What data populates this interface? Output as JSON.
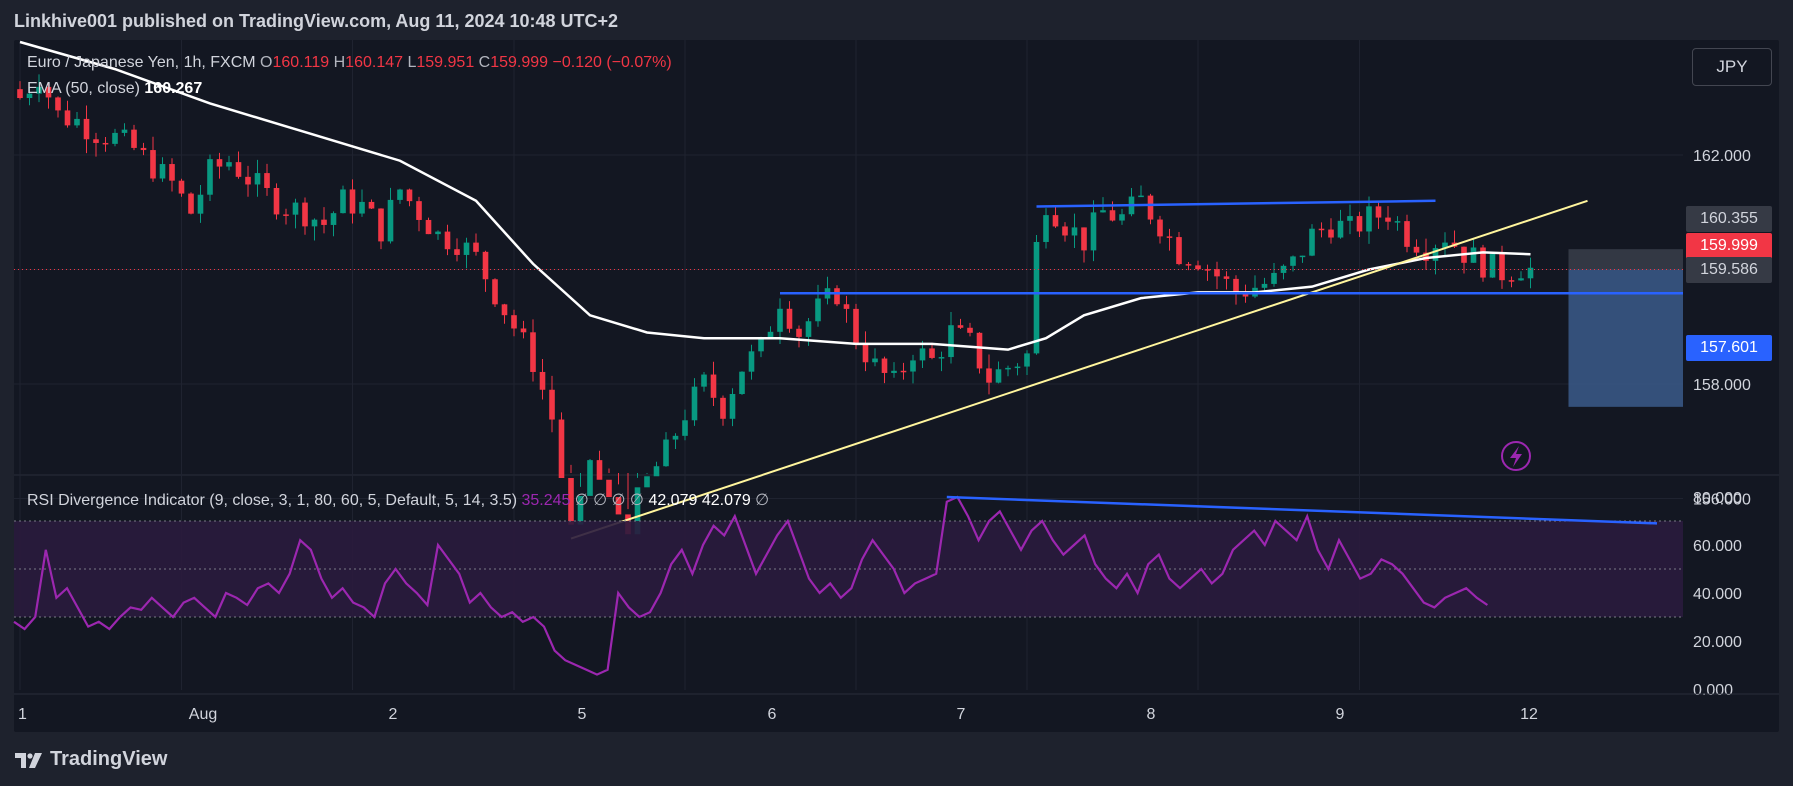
{
  "publisher": "Linkhive001 published on TradingView.com, Aug 11, 2024 10:48 UTC+2",
  "brand": "TradingView",
  "currency_button": "JPY",
  "legend": {
    "symbol": "Euro / Japanese Yen, 1h, FXCM",
    "o_label": "O",
    "o": "160.119",
    "h_label": "H",
    "h": "160.147",
    "l_label": "L",
    "l": "159.951",
    "c_label": "C",
    "c": "159.999",
    "change": "−0.120 (−0.07%)",
    "ema_label": "EMA (50, close)",
    "ema_value": "160.267",
    "rsi_label": "RSI Divergence Indicator (9, close, 3, 1, 80, 60, 5, Default, 5, 14, 3.5)",
    "rsi_value": "35.245",
    "rsi_null": "∅ ∅ ∅ ∅",
    "rsi_v1": "42.079",
    "rsi_v2": "42.079",
    "rsi_null2": "∅"
  },
  "price_tags": [
    {
      "label": "160.355",
      "bg": "#363a45",
      "fg": "#d1d4dc"
    },
    {
      "label": "159.999",
      "bg": "#f23645",
      "fg": "#ffffff"
    },
    {
      "label": "159.586",
      "bg": "#363a45",
      "fg": "#d1d4dc"
    },
    {
      "label": "157.601",
      "bg": "#2962ff",
      "fg": "#ffffff"
    }
  ],
  "colors": {
    "up": "#089981",
    "down": "#f23645",
    "ema": "#ffffff",
    "trendline": "#fff59d",
    "level": "#2962ff",
    "rsi": "#9c27b0",
    "rsi_band": "#2a1b3d",
    "position_box": "#3b5b8a"
  },
  "chart_data": [
    {
      "type": "candlestick",
      "title": "Euro / Japanese Yen, 1h, FXCM",
      "x_ticks": [
        "1",
        "Aug",
        "2",
        "5",
        "6",
        "7",
        "8",
        "9",
        "12"
      ],
      "y_ticks": [
        "162.000",
        "158.000",
        "156.000"
      ],
      "ylim": [
        154.8,
        163.8
      ],
      "anchors": [
        [
          0,
          163.0
        ],
        [
          2,
          163.4
        ],
        [
          4,
          162.7
        ],
        [
          6,
          162.6
        ],
        [
          8,
          162.4
        ],
        [
          10,
          162.3
        ],
        [
          12,
          162.1
        ],
        [
          14,
          161.8
        ],
        [
          16,
          161.5
        ],
        [
          18,
          161.0
        ],
        [
          20,
          161.7
        ],
        [
          22,
          161.9
        ],
        [
          24,
          161.6
        ],
        [
          26,
          161.3
        ],
        [
          28,
          161.1
        ],
        [
          30,
          161.0
        ],
        [
          32,
          160.8
        ],
        [
          34,
          161.2
        ],
        [
          36,
          161.1
        ],
        [
          38,
          160.7
        ],
        [
          40,
          161.4
        ],
        [
          42,
          161.0
        ],
        [
          44,
          160.6
        ],
        [
          46,
          160.5
        ],
        [
          48,
          160.2
        ],
        [
          50,
          159.6
        ],
        [
          52,
          159.0
        ],
        [
          54,
          158.4
        ],
        [
          56,
          157.4
        ],
        [
          58,
          155.4
        ],
        [
          59,
          155.8
        ],
        [
          60,
          156.7
        ],
        [
          62,
          155.9
        ],
        [
          64,
          155.6
        ],
        [
          66,
          156.3
        ],
        [
          68,
          156.8
        ],
        [
          70,
          157.5
        ],
        [
          72,
          158.0
        ],
        [
          74,
          157.6
        ],
        [
          76,
          158.3
        ],
        [
          78,
          158.6
        ],
        [
          80,
          159.5
        ],
        [
          82,
          158.9
        ],
        [
          84,
          159.3
        ],
        [
          86,
          159.6
        ],
        [
          88,
          158.8
        ],
        [
          90,
          158.3
        ],
        [
          92,
          158.0
        ],
        [
          94,
          158.6
        ],
        [
          96,
          158.4
        ],
        [
          98,
          158.9
        ],
        [
          100,
          158.7
        ],
        [
          102,
          158.1
        ],
        [
          104,
          158.3
        ],
        [
          106,
          158.5
        ],
        [
          107,
          160.4
        ],
        [
          108,
          161.2
        ],
        [
          110,
          160.8
        ],
        [
          112,
          160.5
        ],
        [
          114,
          161.0
        ],
        [
          116,
          160.9
        ],
        [
          118,
          161.2
        ],
        [
          120,
          160.8
        ],
        [
          122,
          160.3
        ],
        [
          124,
          160.2
        ],
        [
          126,
          159.9
        ],
        [
          128,
          159.6
        ],
        [
          130,
          159.7
        ],
        [
          132,
          159.8
        ],
        [
          134,
          160.1
        ],
        [
          136,
          160.6
        ],
        [
          138,
          160.8
        ],
        [
          140,
          160.7
        ],
        [
          142,
          160.9
        ],
        [
          144,
          161.0
        ],
        [
          146,
          160.6
        ],
        [
          148,
          160.4
        ],
        [
          150,
          160.6
        ],
        [
          152,
          160.3
        ],
        [
          154,
          160.1
        ],
        [
          156,
          159.95
        ],
        [
          158,
          160.05
        ],
        [
          159,
          159.999
        ]
      ],
      "ema": [
        [
          0,
          164.0
        ],
        [
          10,
          163.5
        ],
        [
          20,
          162.9
        ],
        [
          30,
          162.4
        ],
        [
          40,
          161.9
        ],
        [
          48,
          161.2
        ],
        [
          54,
          160.1
        ],
        [
          60,
          159.2
        ],
        [
          66,
          158.9
        ],
        [
          72,
          158.8
        ],
        [
          80,
          158.8
        ],
        [
          88,
          158.7
        ],
        [
          96,
          158.7
        ],
        [
          104,
          158.6
        ],
        [
          108,
          158.8
        ],
        [
          112,
          159.2
        ],
        [
          118,
          159.5
        ],
        [
          124,
          159.6
        ],
        [
          130,
          159.6
        ],
        [
          136,
          159.7
        ],
        [
          142,
          160.0
        ],
        [
          148,
          160.2
        ],
        [
          154,
          160.3
        ],
        [
          159,
          160.267
        ]
      ],
      "trendline_support": [
        [
          58,
          155.3
        ],
        [
          165,
          161.2
        ]
      ],
      "resistance_line": [
        [
          107,
          161.1
        ],
        [
          149,
          161.2
        ]
      ],
      "support_level": [
        [
          80,
          159.586
        ],
        [
          174,
          159.586
        ]
      ],
      "position_box": {
        "top": 160.355,
        "entry": 159.999,
        "bottom": 157.601,
        "x_start": 163
      }
    },
    {
      "type": "line",
      "title": "RSI Divergence Indicator",
      "y_ticks": [
        "80.000",
        "60.000",
        "40.000",
        "20.000",
        "0.000"
      ],
      "ylim": [
        0,
        80
      ],
      "band": [
        30,
        70
      ],
      "guides": [
        30,
        50,
        70
      ],
      "values": [
        28,
        25,
        30,
        58,
        38,
        42,
        34,
        26,
        28,
        25,
        30,
        34,
        33,
        38,
        34,
        30,
        36,
        38,
        34,
        30,
        40,
        38,
        35,
        42,
        44,
        40,
        48,
        62,
        58,
        46,
        38,
        42,
        36,
        34,
        30,
        44,
        50,
        44,
        40,
        35,
        60,
        54,
        48,
        36,
        40,
        34,
        30,
        32,
        28,
        30,
        26,
        16,
        12,
        10,
        8,
        6,
        8,
        40,
        34,
        30,
        32,
        40,
        52,
        58,
        48,
        60,
        68,
        64,
        72,
        60,
        48,
        56,
        64,
        70,
        58,
        46,
        40,
        44,
        38,
        42,
        54,
        62,
        56,
        50,
        40,
        44,
        46,
        48,
        78,
        80,
        72,
        62,
        70,
        74,
        66,
        58,
        66,
        70,
        62,
        56,
        60,
        64,
        52,
        46,
        42,
        48,
        40,
        52,
        56,
        46,
        42,
        46,
        50,
        44,
        48,
        58,
        62,
        66,
        60,
        70,
        66,
        62,
        72,
        58,
        50,
        62,
        54,
        46,
        48,
        54,
        52,
        48,
        42,
        36,
        34,
        38,
        40,
        42,
        38,
        35
      ],
      "divergence_line": [
        [
          88,
          80
        ],
        [
          155,
          69
        ]
      ]
    }
  ]
}
